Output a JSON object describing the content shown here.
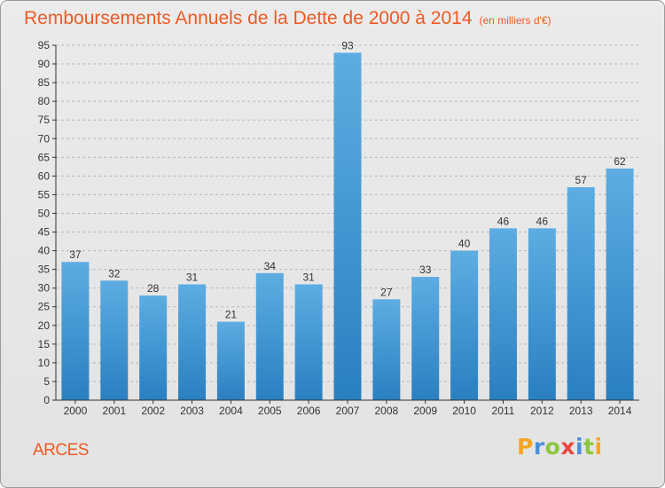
{
  "header": {
    "title": "Remboursements Annuels de la Dette de 2000 à 2014",
    "unit": "(en milliers d'€)"
  },
  "footer": {
    "commune": "ARCES",
    "logo": "Proxiti"
  },
  "colors": {
    "title": "#ee5a24",
    "bar_light": "#5dade2",
    "bar_dark": "#2a7fc0",
    "axis": "#333333",
    "grid": "#b8b8b8"
  },
  "chart_data": {
    "type": "bar",
    "title": "Remboursements Annuels de la Dette de 2000 à 2014",
    "subtitle": "(en milliers d'€)",
    "xlabel": "",
    "ylabel": "",
    "categories": [
      "2000",
      "2001",
      "2002",
      "2003",
      "2004",
      "2005",
      "2006",
      "2007",
      "2008",
      "2009",
      "2010",
      "2011",
      "2012",
      "2013",
      "2014"
    ],
    "values": [
      37,
      32,
      28,
      31,
      21,
      34,
      31,
      93,
      27,
      33,
      40,
      46,
      46,
      57,
      62
    ],
    "ylim": [
      0,
      95
    ],
    "yticks": [
      0,
      5,
      10,
      15,
      20,
      25,
      30,
      35,
      40,
      45,
      50,
      55,
      60,
      65,
      70,
      75,
      80,
      85,
      90,
      95
    ],
    "grid": "horizontal dashed",
    "legend": "none"
  }
}
